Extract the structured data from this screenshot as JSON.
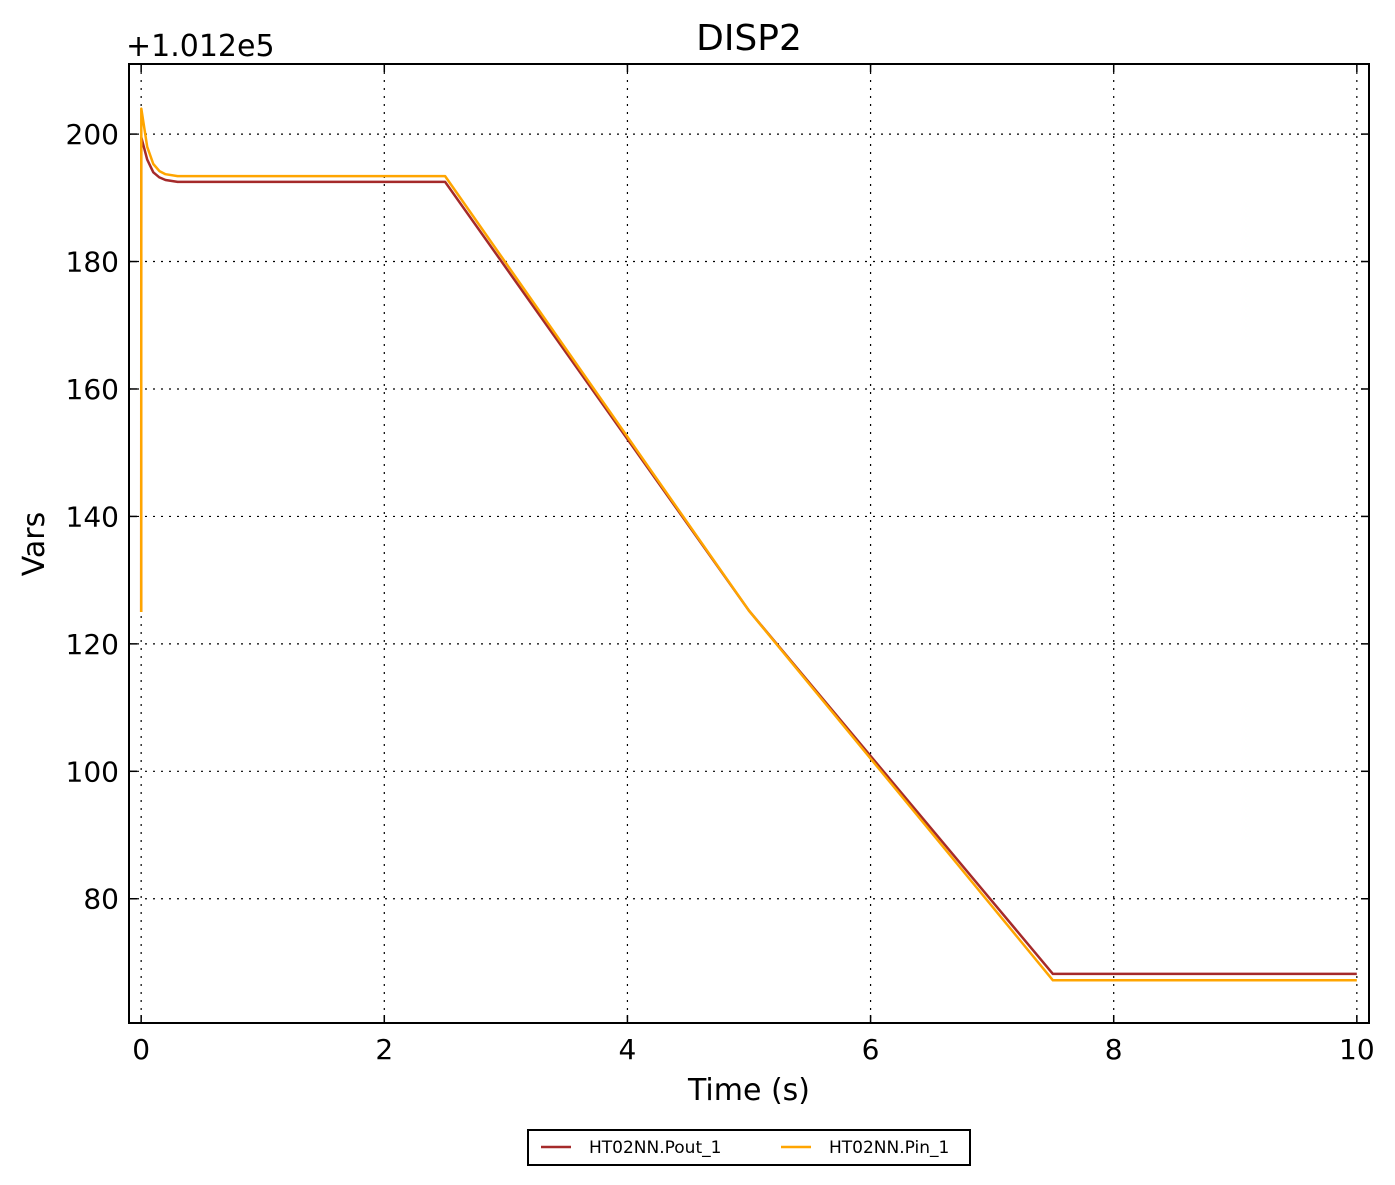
{
  "chart_data": {
    "type": "line",
    "title": "DISP2",
    "xlabel": "Time (s)",
    "ylabel": "Vars",
    "y_offset_label": "+1.012e5",
    "xlim": [
      -0.1,
      10.1
    ],
    "ylim": [
      60.5,
      211
    ],
    "xticks": [
      0,
      2,
      4,
      6,
      8,
      10
    ],
    "yticks": [
      80,
      100,
      120,
      140,
      160,
      180,
      200
    ],
    "grid": true,
    "legend_position": "bottom-center",
    "series": [
      {
        "name": "HT02NN.Pout_1",
        "color": "#a52a2a",
        "x": [
          0,
          0.001,
          0.05,
          0.1,
          0.15,
          0.2,
          0.3,
          2.5,
          5.0,
          7.5,
          10
        ],
        "y": [
          125,
          199.5,
          196.0,
          194.0,
          193.2,
          192.8,
          192.5,
          192.5,
          125.2,
          68.2,
          68.2
        ]
      },
      {
        "name": "HT02NN.Pin_1",
        "color": "#ffa500",
        "x": [
          0,
          0.001,
          0.05,
          0.1,
          0.15,
          0.2,
          0.3,
          2.5,
          5.0,
          7.5,
          10
        ],
        "y": [
          125,
          204,
          198.0,
          195.3,
          194.2,
          193.7,
          193.4,
          193.4,
          125.2,
          67.2,
          67.2
        ]
      }
    ]
  }
}
